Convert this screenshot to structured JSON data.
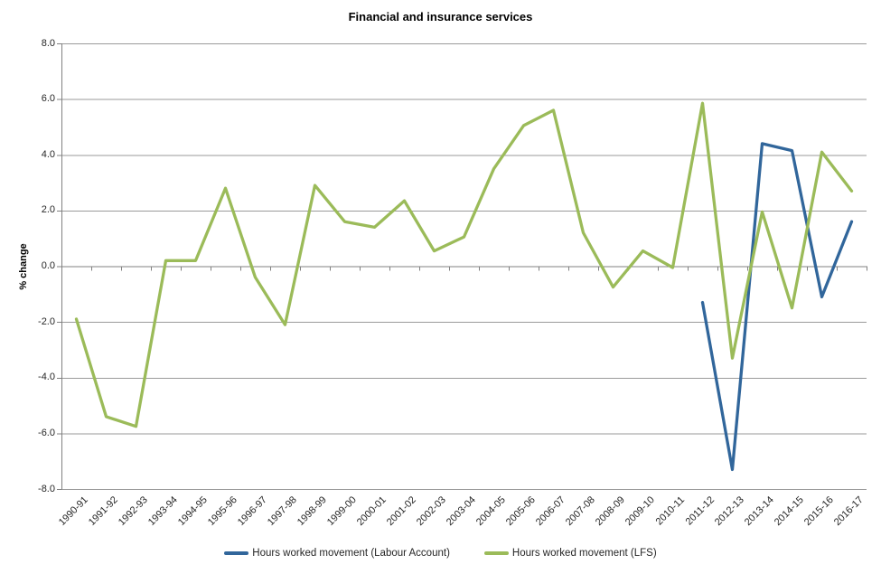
{
  "chart_data": {
    "type": "line",
    "title": "Financial and insurance services",
    "ylabel": "% change",
    "xlabel": "",
    "ylim": [
      -8.0,
      8.0
    ],
    "ytick_values": [
      8,
      6,
      4,
      2,
      0,
      -2,
      -4,
      -6,
      -8
    ],
    "yticks": [
      "8.0",
      "6.0",
      "4.0",
      "2.0",
      "0.0",
      "-2.0",
      "-4.0",
      "-6.0",
      "-8.0"
    ],
    "grid": true,
    "legend_position": "bottom",
    "categories": [
      "1990-91",
      "1991-92",
      "1992-93",
      "1993-94",
      "1994-95",
      "1995-96",
      "1996-97",
      "1997-98",
      "1998-99",
      "1999-00",
      "2000-01",
      "2001-02",
      "2002-03",
      "2003-04",
      "2004-05",
      "2005-06",
      "2006-07",
      "2007-08",
      "2008-09",
      "2009-10",
      "2010-11",
      "2011-12",
      "2012-13",
      "2013-14",
      "2014-15",
      "2015-16",
      "2016-17"
    ],
    "series": [
      {
        "name": "Hours worked movement (Labour Account)",
        "color": "#31669B",
        "values": [
          null,
          null,
          null,
          null,
          null,
          null,
          null,
          null,
          null,
          null,
          null,
          null,
          null,
          null,
          null,
          null,
          null,
          null,
          null,
          null,
          null,
          -1.3,
          -7.3,
          4.4,
          4.15,
          -1.1,
          1.6
        ]
      },
      {
        "name": "Hours worked movement (LFS)",
        "color": "#9BBB59",
        "values": [
          -1.9,
          -5.4,
          -5.75,
          0.2,
          0.2,
          2.8,
          -0.4,
          -2.1,
          2.9,
          1.6,
          1.4,
          2.35,
          0.55,
          1.05,
          3.5,
          5.05,
          5.6,
          1.2,
          -0.75,
          0.55,
          -0.05,
          5.85,
          -3.3,
          1.95,
          -1.5,
          4.1,
          2.7
        ]
      }
    ],
    "colors": {
      "background": "#FFFFFF",
      "gridline": "#9A9A9A",
      "axis": "#808080",
      "text": "#262626"
    }
  }
}
